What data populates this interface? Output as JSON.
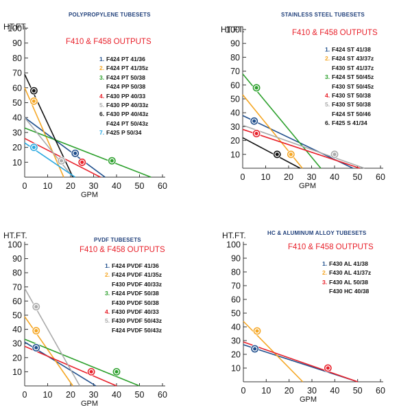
{
  "chart_data": [
    {
      "type": "line",
      "title": "POLYPROPYLENE TUBESETS",
      "subtitle": "F410 & F458 OUTPUTS",
      "ylabel": "HT.FT.",
      "xlabel": "GPM",
      "xlim": [
        0,
        60
      ],
      "ylim": [
        0,
        100
      ],
      "xticks": [
        "0",
        "10",
        "20",
        "30",
        "40",
        "50",
        "60"
      ],
      "yticks": [
        "10",
        "20",
        "30",
        "40",
        "50",
        "60",
        "70",
        "80",
        "90",
        "100"
      ],
      "legend": [
        {
          "num": "1.",
          "lines": [
            "F424 PT 41/36"
          ],
          "color": "#1f4e8c"
        },
        {
          "num": "2.",
          "lines": [
            "F424 PT 41/35z"
          ],
          "color": "#f5a623"
        },
        {
          "num": "3.",
          "lines": [
            "F424 PT 50/38",
            "F424 PP 50/38"
          ],
          "color": "#2ca02c"
        },
        {
          "num": "4.",
          "lines": [
            "F430 PP 40/33"
          ],
          "color": "#e8202a"
        },
        {
          "num": "5.",
          "lines": [
            "F430 PP 40/33z"
          ],
          "color": "#aaaaaa"
        },
        {
          "num": "6.",
          "lines": [
            "F430 PP 40/43z",
            "F424 PT 50/43z"
          ],
          "color": "#111111"
        },
        {
          "num": "7.",
          "lines": [
            "F425 P 50/34"
          ],
          "color": "#29a8e0"
        }
      ],
      "series": [
        {
          "num": "1",
          "color": "#1f4e8c",
          "values": [
            [
              0,
              40
            ],
            [
              35,
              0
            ]
          ],
          "marker": [
            22,
            16
          ]
        },
        {
          "num": "2",
          "color": "#f5a623",
          "values": [
            [
              0,
              60
            ],
            [
              17,
              0
            ]
          ],
          "marker": [
            4,
            51
          ]
        },
        {
          "num": "3",
          "color": "#2ca02c",
          "values": [
            [
              0,
              33
            ],
            [
              55,
              0
            ]
          ],
          "marker": [
            38,
            11
          ]
        },
        {
          "num": "4",
          "color": "#e8202a",
          "values": [
            [
              0,
              26
            ],
            [
              33,
              0
            ]
          ],
          "marker": [
            25,
            10
          ]
        },
        {
          "num": "5",
          "color": "#aaaaaa",
          "values": [
            [
              0,
              40
            ],
            [
              21,
              0
            ]
          ],
          "marker": [
            16,
            11
          ]
        },
        {
          "num": "6",
          "color": "#111111",
          "values": [
            [
              0,
              69
            ],
            [
              21,
              0
            ]
          ],
          "marker": [
            4,
            58
          ]
        },
        {
          "num": "7",
          "color": "#29a8e0",
          "values": [
            [
              0,
              23
            ],
            [
              22,
              0
            ]
          ],
          "marker": [
            4,
            20
          ]
        }
      ]
    },
    {
      "type": "line",
      "title": "STAINLESS STEEL TUBESETS",
      "subtitle": "F410 & F458 OUTPUTS",
      "ylabel": "HT.FT.",
      "xlabel": "GPM",
      "xlim": [
        0,
        60
      ],
      "ylim": [
        0,
        100
      ],
      "xticks": [
        "0",
        "10",
        "20",
        "30",
        "40",
        "50",
        "60"
      ],
      "yticks": [
        "10",
        "20",
        "30",
        "40",
        "50",
        "60",
        "70",
        "80",
        "90",
        "100"
      ],
      "legend": [
        {
          "num": "1.",
          "lines": [
            "F424 ST 41/38"
          ],
          "color": "#1f4e8c"
        },
        {
          "num": "2.",
          "lines": [
            "F424 ST 43/37z",
            "F430 ST 41/37z"
          ],
          "color": "#f5a623"
        },
        {
          "num": "3.",
          "lines": [
            "F424 ST 50/45z",
            "F430 ST 50/45z"
          ],
          "color": "#2ca02c"
        },
        {
          "num": "4.",
          "lines": [
            "F430 ST 50/38"
          ],
          "color": "#e8202a"
        },
        {
          "num": "5.",
          "lines": [
            "F430 ST 50/38",
            "F424 ST 50/46"
          ],
          "color": "#aaaaaa"
        },
        {
          "num": "6.",
          "lines": [
            "F425 S 41/34"
          ],
          "color": "#111111"
        }
      ],
      "series": [
        {
          "num": "1",
          "color": "#1f4e8c",
          "values": [
            [
              0,
              38
            ],
            [
              48,
              0
            ]
          ],
          "marker": [
            5,
            34
          ]
        },
        {
          "num": "2",
          "color": "#f5a623",
          "values": [
            [
              0,
              53
            ],
            [
              26,
              0
            ]
          ],
          "marker": [
            21,
            10
          ]
        },
        {
          "num": "3",
          "color": "#2ca02c",
          "values": [
            [
              0,
              68
            ],
            [
              34,
              0
            ]
          ],
          "marker": [
            6,
            58
          ]
        },
        {
          "num": "4",
          "color": "#e8202a",
          "values": [
            [
              0,
              28
            ],
            [
              51,
              0
            ]
          ],
          "marker": [
            6,
            25
          ]
        },
        {
          "num": "5",
          "color": "#aaaaaa",
          "values": [
            [
              0,
              31
            ],
            [
              53,
              0
            ]
          ],
          "marker": [
            40,
            10
          ]
        },
        {
          "num": "6",
          "color": "#111111",
          "values": [
            [
              0,
              22
            ],
            [
              25,
              0
            ]
          ],
          "marker": [
            15,
            10
          ]
        }
      ]
    },
    {
      "type": "line",
      "title": "PVDF TUBESETS",
      "subtitle": "F410 & F458 OUTPUTS",
      "ylabel": "HT.FT.",
      "xlabel": "GPM",
      "xlim": [
        0,
        60
      ],
      "ylim": [
        0,
        100
      ],
      "xticks": [
        "0",
        "10",
        "20",
        "30",
        "40",
        "50",
        "60"
      ],
      "yticks": [
        "10",
        "20",
        "30",
        "40",
        "50",
        "60",
        "70",
        "80",
        "90",
        "100"
      ],
      "legend": [
        {
          "num": "1.",
          "lines": [
            "F424 PVDF 41/36"
          ],
          "color": "#1f4e8c"
        },
        {
          "num": "2.",
          "lines": [
            "F424 PVDF 41/35z",
            "F430 PVDF 40/33z"
          ],
          "color": "#f5a623"
        },
        {
          "num": "3.",
          "lines": [
            "F424 PVDF 50/38",
            "F430 PVDF 50/38"
          ],
          "color": "#2ca02c"
        },
        {
          "num": "4.",
          "lines": [
            "F430 PVDF 40/33"
          ],
          "color": "#e8202a"
        },
        {
          "num": "5.",
          "lines": [
            "F430 PVDF 50/43z",
            "F424 PVDF 50/43z"
          ],
          "color": "#aaaaaa"
        }
      ],
      "series": [
        {
          "num": "1",
          "color": "#1f4e8c",
          "values": [
            [
              0,
              31
            ],
            [
              31,
              0
            ]
          ],
          "marker": [
            5,
            27
          ]
        },
        {
          "num": "2",
          "color": "#f5a623",
          "values": [
            [
              0,
              49
            ],
            [
              21,
              0
            ]
          ],
          "marker": [
            5,
            39
          ]
        },
        {
          "num": "3",
          "color": "#2ca02c",
          "values": [
            [
              0,
              33
            ],
            [
              50,
              0
            ]
          ],
          "marker": [
            40,
            10
          ]
        },
        {
          "num": "4",
          "color": "#e8202a",
          "values": [
            [
              0,
              28
            ],
            [
              40,
              0
            ]
          ],
          "marker": [
            29,
            10
          ]
        },
        {
          "num": "5",
          "color": "#aaaaaa",
          "values": [
            [
              0,
              69
            ],
            [
              24,
              0
            ]
          ],
          "marker": [
            5,
            56
          ]
        }
      ]
    },
    {
      "type": "line",
      "title": "HC & ALUMINUM ALLOY TUBESETS",
      "subtitle": "F410 & F458 OUTPUTS",
      "ylabel": "HT.FT.",
      "xlabel": "GPM",
      "xlim": [
        0,
        60
      ],
      "ylim": [
        0,
        100
      ],
      "xticks": [
        "0",
        "10",
        "20",
        "30",
        "40",
        "50",
        "60"
      ],
      "yticks": [
        "10",
        "20",
        "30",
        "40",
        "50",
        "60",
        "70",
        "80",
        "90",
        "100"
      ],
      "legend": [
        {
          "num": "1.",
          "lines": [
            "F430 AL  41/38"
          ],
          "color": "#1f4e8c"
        },
        {
          "num": "2.",
          "lines": [
            "F430 AL   41/37z"
          ],
          "color": "#f5a623"
        },
        {
          "num": "3.",
          "lines": [
            "F430 AL   50/38",
            "F430 HC  40/38"
          ],
          "color": "#e8202a"
        }
      ],
      "series": [
        {
          "num": "1",
          "color": "#1f4e8c",
          "values": [
            [
              0,
              27
            ],
            [
              50,
              0
            ]
          ],
          "marker": [
            5,
            24
          ]
        },
        {
          "num": "2",
          "color": "#f5a623",
          "values": [
            [
              0,
              44
            ],
            [
              26,
              0
            ]
          ],
          "marker": [
            6,
            37
          ]
        },
        {
          "num": "3",
          "color": "#e8202a",
          "values": [
            [
              0,
              29
            ],
            [
              50,
              0
            ]
          ],
          "marker": [
            37,
            10
          ]
        }
      ]
    }
  ]
}
